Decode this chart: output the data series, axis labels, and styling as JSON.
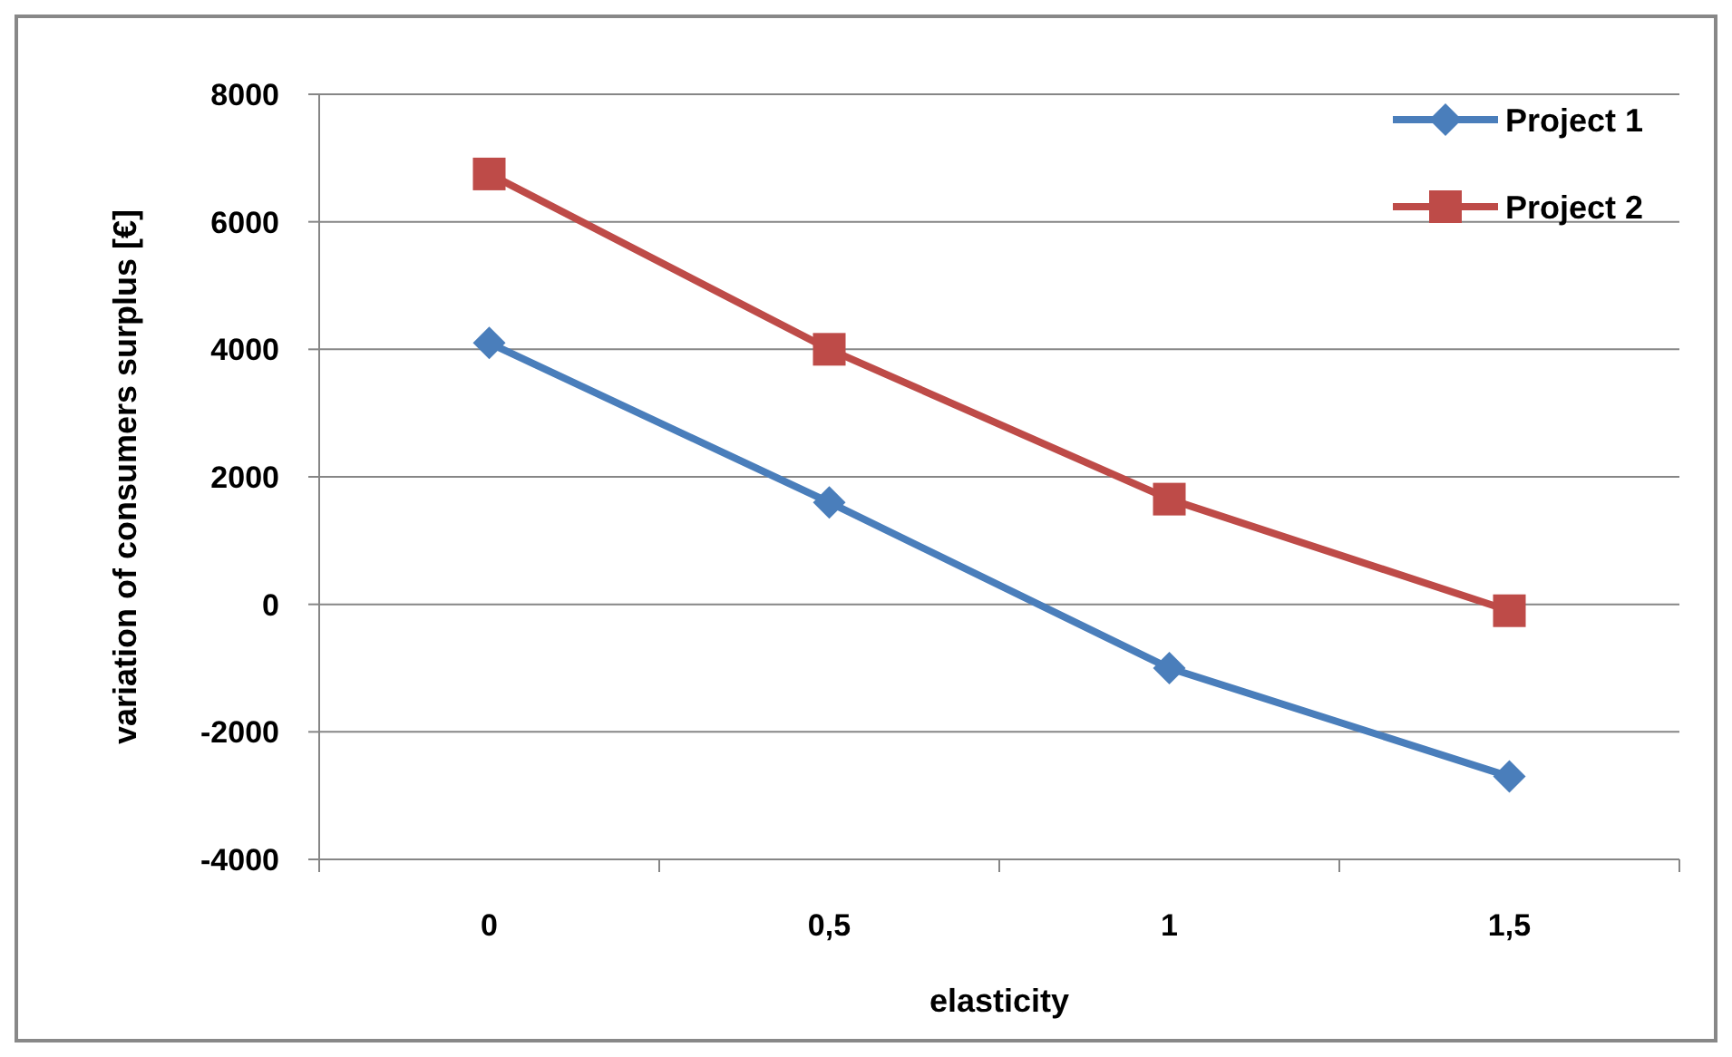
{
  "chart_data": {
    "type": "line",
    "xlabel": "elasticity",
    "ylabel": "variation of consumers surplus [€]",
    "categories": [
      "0",
      "0,5",
      "1",
      "1,5"
    ],
    "series": [
      {
        "name": "Project 1",
        "color": "#4a7ebb",
        "marker": "diamond",
        "values": [
          4100,
          1600,
          -1000,
          -2700
        ]
      },
      {
        "name": "Project 2",
        "color": "#be4b48",
        "marker": "square",
        "values": [
          6750,
          4000,
          1650,
          -100
        ]
      }
    ],
    "ylim": [
      -4000,
      8000
    ],
    "yticks": [
      -4000,
      -2000,
      0,
      2000,
      4000,
      6000,
      8000
    ],
    "grid": "y",
    "legend": "top right",
    "line_style": "solid"
  }
}
